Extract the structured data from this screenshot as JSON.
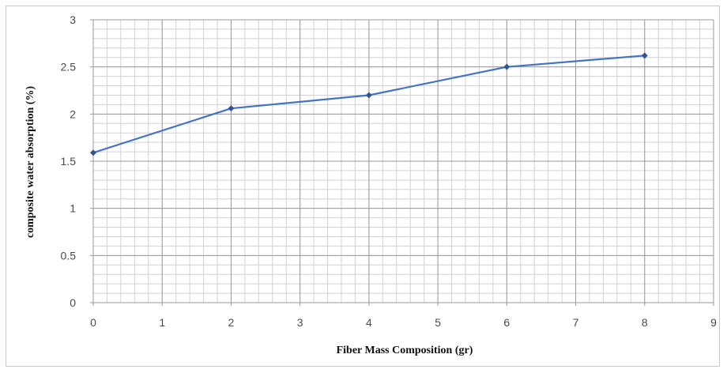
{
  "chart_data": {
    "type": "line",
    "x": [
      0,
      2,
      4,
      6,
      8
    ],
    "series": [
      {
        "values": [
          1.59,
          2.06,
          2.2,
          2.5,
          2.62
        ]
      }
    ],
    "xlabel": "Fiber Mass Composition (gr)",
    "ylabel": "composite water  absorption (%)",
    "xlim": [
      0,
      9
    ],
    "ylim": [
      0,
      3
    ],
    "x_ticks": [
      "0",
      "1",
      "2",
      "3",
      "4",
      "5",
      "6",
      "7",
      "8",
      "9"
    ],
    "y_ticks": [
      "0",
      "0.5",
      "1",
      "1.5",
      "2",
      "2.5",
      "3"
    ],
    "grid": true,
    "minor_grid": true,
    "legend": "none",
    "colors": {
      "line": "#4472c4",
      "marker": "#2f5597",
      "major_grid": "#9a9a9a",
      "minor_grid": "#d2d2d2"
    }
  }
}
